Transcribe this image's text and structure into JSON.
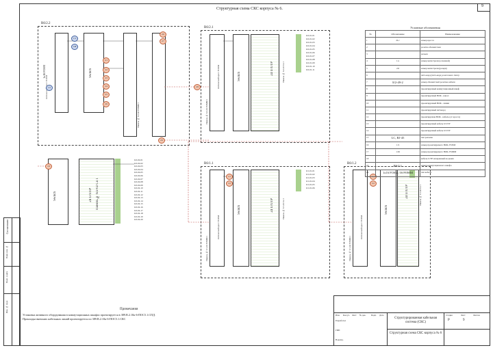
{
  "sheet": {
    "title": "Структурная схема СКС корпуса № 6.",
    "page_number": "9"
  },
  "cabinets": [
    {
      "name": "R6/2.2",
      "switch": "Switch",
      "panel_fo": "Оптический кросс FOKM",
      "panel_fo_num": "Панель № 6/2-02 FOMM 1",
      "panel_cu": "Панель № 6/2-02 Cu 1",
      "cat": "24 U/UTP",
      "cable_label": "1x16 FOSM"
    },
    {
      "name": "R6/2.1",
      "switch": "Switch",
      "panel_fo": "Оптический кросс FOKM",
      "panel_fo_num": "Панель № 6/2-01 FOMM 1",
      "panel_cu": "Панель № 6/2-01 Cu 1",
      "cat": "24 U/UTP"
    },
    {
      "name": "R6/1.1",
      "switch": "Switch",
      "panel_fo": "Оптический кросс FOKM",
      "panel_fo_num": "Панель № 6/1-01 FOMM 1",
      "panel_cu": "Панель № 6/1-01 Cu 1",
      "cat": "24 U/UTP"
    },
    {
      "name": "R6/1.2",
      "switch": "Switch",
      "panel_fo": "Оптический кросс FOKM",
      "panel_fo_num": "Панель № 6/1-02 FOMM 1",
      "panel_cu": "Панель № 6/1-02 Cu 1",
      "cat": "24 U/UTP"
    }
  ],
  "ports_r62_1": [
    "6/2-01-01",
    "6/2-01-02",
    "6/2-01-03",
    "6/2-01-04",
    "6/2-01-05",
    "6/2-01-06",
    "6/2-01-07",
    "6/2-01-08",
    "6/2-01-09",
    "6/2-01-10",
    "6/2-01-11"
  ],
  "ports_r62_2": [
    "6/2-02-01",
    "6/2-02-02",
    "6/2-02-03",
    "6/2-02-04",
    "6/2-02-05",
    "6/2-02-06",
    "6/2-02-07",
    "6/2-02-08",
    "6/2-02-09",
    "6/2-02-10",
    "6/2-02-11",
    "6/2-02-12",
    "6/2-02-13",
    "6/2-02-14",
    "6/2-02-15",
    "6/2-02-16",
    "6/2-02-17",
    "6/2-02-18",
    "6/2-02-19",
    "6/2-02-20"
  ],
  "ports_r61_1": [
    "6/1-01-01",
    "6/1-01-02",
    "6/1-01-03",
    "6/1-01-04",
    "6/1-01-05",
    "6/1-01-06"
  ],
  "ports_r61_2": [
    "6/1-02-01",
    "6/1-02-02"
  ],
  "legend": {
    "title": "Условные обозначения",
    "col_num": "№",
    "col_sym": "Обозначение",
    "col_name": "Наименование",
    "rows": [
      {
        "n": "1",
        "sym": "2Lc",
        "name": "номер кросса"
      },
      {
        "n": "2",
        "sym": "",
        "name": "розетка абонентская"
      },
      {
        "n": "3",
        "sym": "",
        "name": "разъем"
      },
      {
        "n": "4",
        "sym": "1.x",
        "name": "номер магистрали (основной)"
      },
      {
        "n": "5",
        "sym": "2.6",
        "name": "номер магистрали (резерв)"
      },
      {
        "n": "6",
        "sym": "",
        "name": "патч-корд (патч-корд розеточного типа)"
      },
      {
        "n": "7",
        "sym": "8/2-49-2",
        "name": "номер абонентской розетки, кабеля"
      },
      {
        "n": "8",
        "sym": "",
        "name": "проектируемый коммутационный шкаф"
      },
      {
        "n": "9",
        "sym": "",
        "name": "проектируемый ВОК - канал"
      },
      {
        "n": "10",
        "sym": "",
        "name": "проектируемый ВОК - линия"
      },
      {
        "n": "11",
        "sym": "",
        "name": "проектируемый патчкорд"
      },
      {
        "n": "12",
        "sym": "",
        "name": "проектируемая ВОК - кабель (от кросса)"
      },
      {
        "n": "13",
        "sym": "",
        "name": "проектируемый кабель U/UTP"
      },
      {
        "n": "14",
        "sym": "",
        "name": "проектируемый кабель U/UTP"
      },
      {
        "n": "15",
        "sym": "LC, RJ-45",
        "name": "тип разъема"
      },
      {
        "n": "16",
        "sym": "1.S",
        "name": "номер проектируемого ВОК, FOSM"
      },
      {
        "n": "17",
        "sym": "1.M",
        "name": "номер проектируемого ВОК, FOMM"
      },
      {
        "n": "18",
        "sym": "",
        "name": "кабель U/TP неэкранный на двоих"
      },
      {
        "n": "19",
        "sym": "R6/2.1",
        "name": "номер коммутационного шкафа"
      },
      {
        "n": "20",
        "sym": "1x16 FOSM, 16 FOMM",
        "name": "тип кабеля"
      }
    ]
  },
  "notes": {
    "heading": "Примечания",
    "line1": "Установка активного оборудования в коммутационных шкафах проектируется в 389.В.2.10к-6-ПОС5.1.СПД.",
    "line2": "Прокладка внешних кабельных линий проектируется по 389.В.2.10к-6-ПОС5.1.СКС"
  },
  "left_stamp": [
    "Инв. № подл.",
    "Подп. и дата",
    "Взам. инв. №",
    "Согласовано"
  ],
  "title_block": {
    "project": "Структурированная кабельная система (СКС)",
    "drawing": "Структурная схема СКС корпуса № 6",
    "stage": "Р",
    "sheet": "9",
    "labels": [
      "Изм.",
      "Кол.уч.",
      "Лист",
      "№ док.",
      "Подп.",
      "Дата"
    ],
    "roles": [
      "Разработал",
      "ГИП",
      "Н.контр."
    ],
    "col_headers": [
      "Стадия",
      "Лист",
      "Листов"
    ]
  },
  "colors": {
    "line": "#333333",
    "cable_red": "#c0504d",
    "panel_green": "#a9d18e",
    "badge_red": "#f4c7b0",
    "badge_blue": "#c9d6f0"
  }
}
